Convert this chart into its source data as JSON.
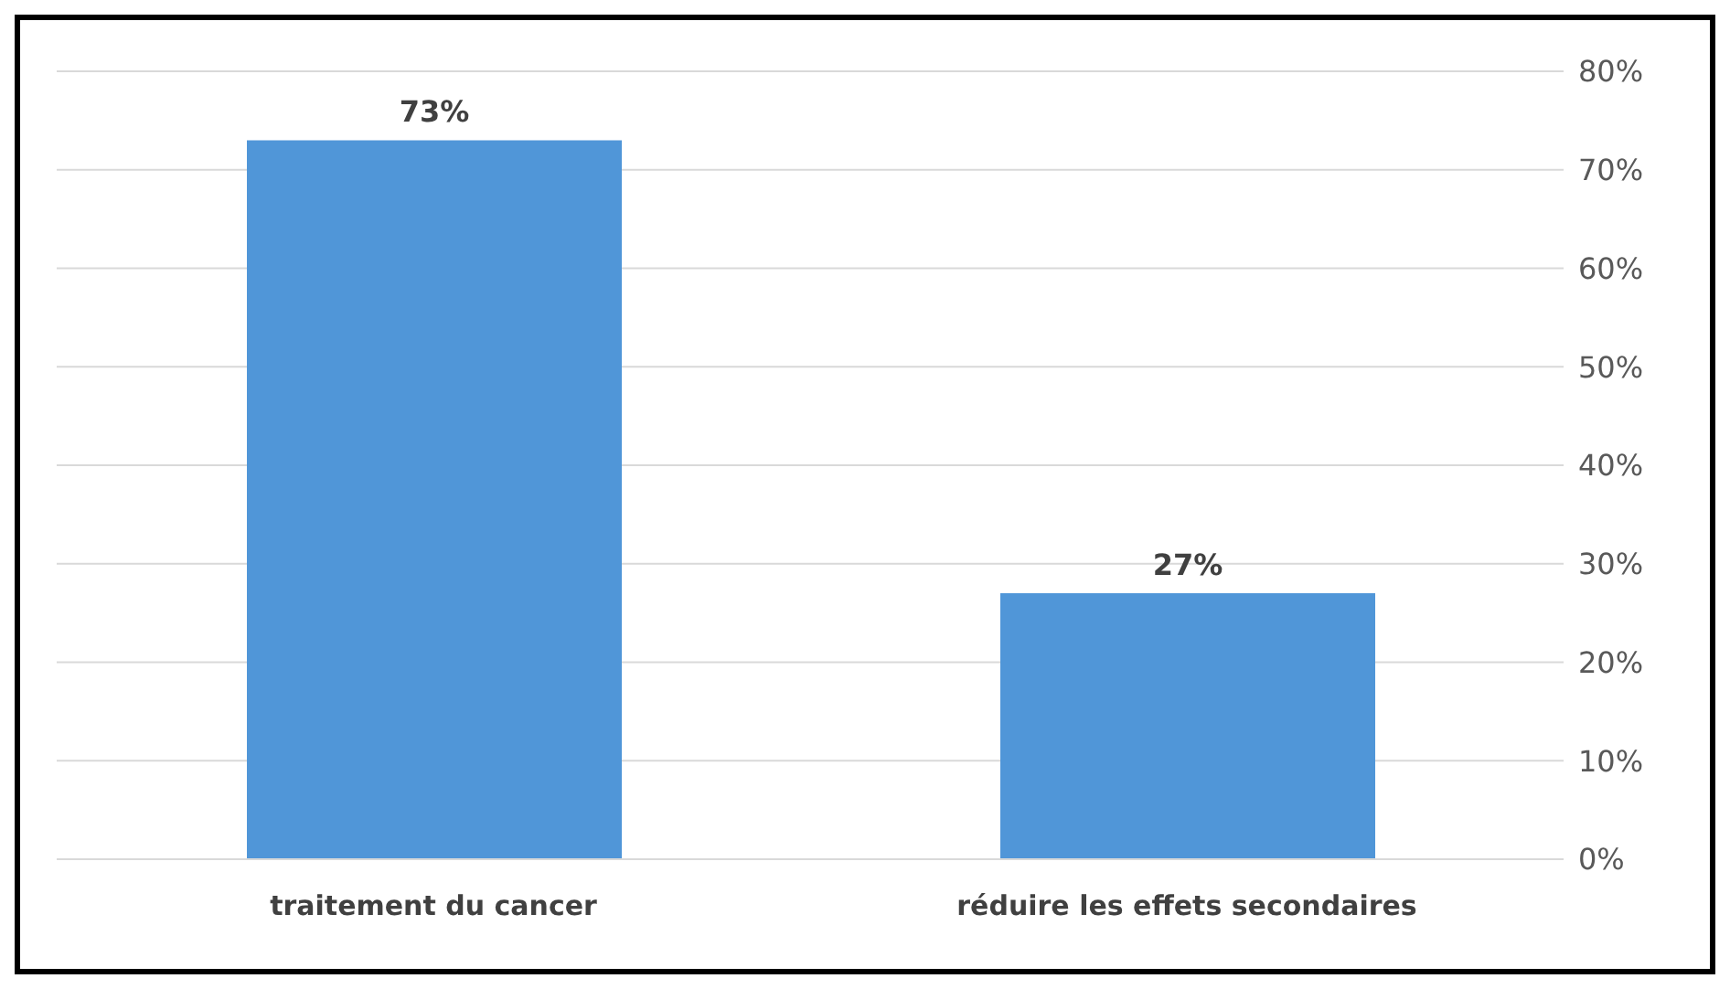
{
  "chart_data": {
    "type": "bar",
    "categories": [
      "traitement du cancer",
      "réduire les effets secondaires"
    ],
    "values": [
      73,
      27
    ],
    "value_labels": [
      "73%",
      "27%"
    ],
    "color": "#5096d8",
    "ylim": [
      0,
      80
    ],
    "yticks": [
      {
        "value": 0,
        "label": "0%"
      },
      {
        "value": 10,
        "label": "10%"
      },
      {
        "value": 20,
        "label": "20%"
      },
      {
        "value": 30,
        "label": "30%"
      },
      {
        "value": 40,
        "label": "40%"
      },
      {
        "value": 50,
        "label": "50%"
      },
      {
        "value": 60,
        "label": "60%"
      },
      {
        "value": 70,
        "label": "70%"
      },
      {
        "value": 80,
        "label": "80%"
      }
    ],
    "grid": "y"
  }
}
